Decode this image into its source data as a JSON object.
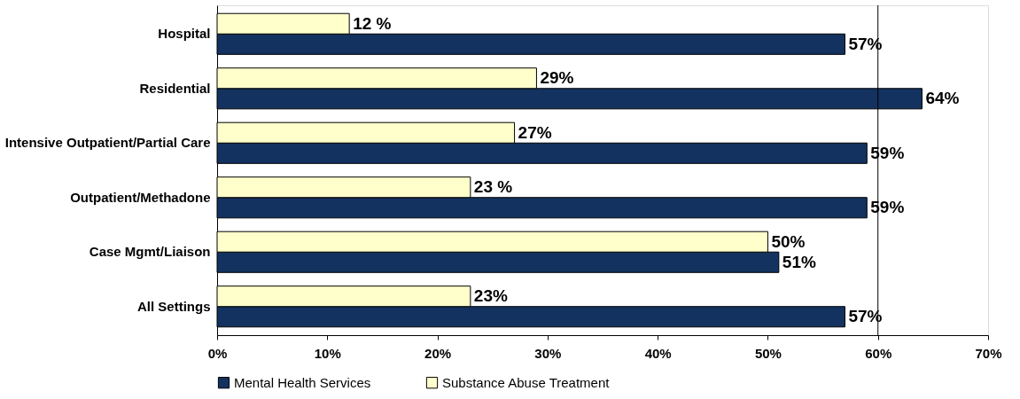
{
  "chart_data": {
    "type": "bar",
    "orientation": "horizontal",
    "categories": [
      "Hospital",
      "Residential",
      "Intensive Outpatient/Partial Care",
      "Outpatient/Methadone",
      "Case Mgmt/Liaison",
      "All Settings"
    ],
    "series": [
      {
        "name": "Mental Health Services",
        "color": "#13325f",
        "values": [
          57,
          64,
          59,
          59,
          51,
          57
        ],
        "value_labels": [
          "57%",
          "64%",
          "59%",
          "59%",
          "51%",
          "57%"
        ]
      },
      {
        "name": "Substance Abuse Treatment",
        "color": "#ffffcc",
        "values": [
          12,
          29,
          27,
          23,
          50,
          23
        ],
        "value_labels": [
          "12 %",
          "29%",
          "27%",
          "23 %",
          "50%",
          "23%"
        ]
      }
    ],
    "xlim": [
      0,
      70
    ],
    "xticks": [
      {
        "value": 0,
        "label": "0%"
      },
      {
        "value": 10,
        "label": "10%"
      },
      {
        "value": 20,
        "label": "20%"
      },
      {
        "value": 30,
        "label": "30%"
      },
      {
        "value": 40,
        "label": "40%"
      },
      {
        "value": 50,
        "label": "50%"
      },
      {
        "value": 60,
        "label": "60%"
      },
      {
        "value": 70,
        "label": "70%"
      }
    ],
    "ref_lines": [
      {
        "axis": "x",
        "value": 60,
        "label": null
      }
    ],
    "grid": false,
    "legend": "bottom"
  }
}
